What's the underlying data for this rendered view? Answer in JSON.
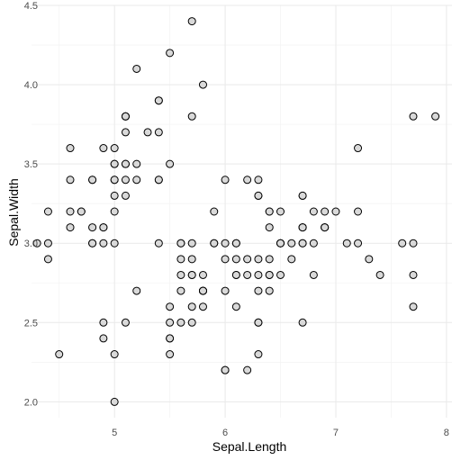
{
  "chart_data": {
    "type": "scatter",
    "xlabel": "Sepal.Length",
    "ylabel": "Sepal.Width",
    "xlim": [
      4.25,
      8.05
    ],
    "ylim": [
      1.9,
      4.5
    ],
    "x_ticks": [
      5,
      6,
      7,
      8
    ],
    "y_ticks": [
      2.0,
      2.5,
      3.0,
      3.5,
      4.0,
      4.5
    ],
    "x_tick_labels": [
      "5",
      "6",
      "7",
      "8"
    ],
    "y_tick_labels": [
      "2.0",
      "2.5",
      "3.0",
      "3.5",
      "4.0",
      "4.5"
    ],
    "grid": true,
    "legend": "none",
    "point_fill": "#d9d9d9",
    "point_stroke": "#000000",
    "points": [
      {
        "x": 5.1,
        "y": 3.5
      },
      {
        "x": 4.9,
        "y": 3.0
      },
      {
        "x": 4.7,
        "y": 3.2
      },
      {
        "x": 4.6,
        "y": 3.1
      },
      {
        "x": 5.0,
        "y": 3.6
      },
      {
        "x": 5.4,
        "y": 3.9
      },
      {
        "x": 4.6,
        "y": 3.4
      },
      {
        "x": 5.0,
        "y": 3.4
      },
      {
        "x": 4.4,
        "y": 2.9
      },
      {
        "x": 4.9,
        "y": 3.1
      },
      {
        "x": 5.4,
        "y": 3.7
      },
      {
        "x": 4.8,
        "y": 3.4
      },
      {
        "x": 4.8,
        "y": 3.0
      },
      {
        "x": 4.3,
        "y": 3.0
      },
      {
        "x": 5.8,
        "y": 4.0
      },
      {
        "x": 5.7,
        "y": 4.4
      },
      {
        "x": 5.4,
        "y": 3.9
      },
      {
        "x": 5.1,
        "y": 3.5
      },
      {
        "x": 5.7,
        "y": 3.8
      },
      {
        "x": 5.1,
        "y": 3.8
      },
      {
        "x": 5.4,
        "y": 3.4
      },
      {
        "x": 5.1,
        "y": 3.7
      },
      {
        "x": 4.6,
        "y": 3.6
      },
      {
        "x": 5.1,
        "y": 3.3
      },
      {
        "x": 4.8,
        "y": 3.4
      },
      {
        "x": 5.0,
        "y": 3.0
      },
      {
        "x": 5.0,
        "y": 3.4
      },
      {
        "x": 5.2,
        "y": 3.5
      },
      {
        "x": 5.2,
        "y": 3.4
      },
      {
        "x": 4.7,
        "y": 3.2
      },
      {
        "x": 4.8,
        "y": 3.1
      },
      {
        "x": 5.4,
        "y": 3.4
      },
      {
        "x": 5.2,
        "y": 4.1
      },
      {
        "x": 5.5,
        "y": 4.2
      },
      {
        "x": 4.9,
        "y": 3.1
      },
      {
        "x": 5.0,
        "y": 3.2
      },
      {
        "x": 5.5,
        "y": 3.5
      },
      {
        "x": 4.9,
        "y": 3.6
      },
      {
        "x": 4.4,
        "y": 3.0
      },
      {
        "x": 5.1,
        "y": 3.4
      },
      {
        "x": 5.0,
        "y": 3.5
      },
      {
        "x": 4.5,
        "y": 2.3
      },
      {
        "x": 4.4,
        "y": 3.2
      },
      {
        "x": 5.0,
        "y": 3.5
      },
      {
        "x": 5.1,
        "y": 3.8
      },
      {
        "x": 4.8,
        "y": 3.0
      },
      {
        "x": 5.1,
        "y": 3.8
      },
      {
        "x": 4.6,
        "y": 3.2
      },
      {
        "x": 5.3,
        "y": 3.7
      },
      {
        "x": 5.0,
        "y": 3.3
      },
      {
        "x": 7.0,
        "y": 3.2
      },
      {
        "x": 6.4,
        "y": 3.2
      },
      {
        "x": 6.9,
        "y": 3.1
      },
      {
        "x": 5.5,
        "y": 2.3
      },
      {
        "x": 6.5,
        "y": 2.8
      },
      {
        "x": 5.7,
        "y": 2.8
      },
      {
        "x": 6.3,
        "y": 3.3
      },
      {
        "x": 4.9,
        "y": 2.4
      },
      {
        "x": 6.6,
        "y": 2.9
      },
      {
        "x": 5.2,
        "y": 2.7
      },
      {
        "x": 5.0,
        "y": 2.0
      },
      {
        "x": 5.9,
        "y": 3.0
      },
      {
        "x": 6.0,
        "y": 2.2
      },
      {
        "x": 6.1,
        "y": 2.9
      },
      {
        "x": 5.6,
        "y": 2.9
      },
      {
        "x": 6.7,
        "y": 3.1
      },
      {
        "x": 5.6,
        "y": 3.0
      },
      {
        "x": 5.8,
        "y": 2.7
      },
      {
        "x": 6.2,
        "y": 2.2
      },
      {
        "x": 5.6,
        "y": 2.5
      },
      {
        "x": 5.9,
        "y": 3.2
      },
      {
        "x": 6.1,
        "y": 2.8
      },
      {
        "x": 6.3,
        "y": 2.5
      },
      {
        "x": 6.1,
        "y": 2.8
      },
      {
        "x": 6.4,
        "y": 2.9
      },
      {
        "x": 6.6,
        "y": 3.0
      },
      {
        "x": 6.8,
        "y": 2.8
      },
      {
        "x": 6.7,
        "y": 3.0
      },
      {
        "x": 6.0,
        "y": 2.9
      },
      {
        "x": 5.7,
        "y": 2.6
      },
      {
        "x": 5.5,
        "y": 2.4
      },
      {
        "x": 5.5,
        "y": 2.4
      },
      {
        "x": 5.8,
        "y": 2.7
      },
      {
        "x": 6.0,
        "y": 2.7
      },
      {
        "x": 5.4,
        "y": 3.0
      },
      {
        "x": 6.0,
        "y": 3.4
      },
      {
        "x": 6.7,
        "y": 3.1
      },
      {
        "x": 6.3,
        "y": 2.3
      },
      {
        "x": 5.6,
        "y": 3.0
      },
      {
        "x": 5.5,
        "y": 2.5
      },
      {
        "x": 5.5,
        "y": 2.6
      },
      {
        "x": 6.1,
        "y": 3.0
      },
      {
        "x": 5.8,
        "y": 2.6
      },
      {
        "x": 5.0,
        "y": 2.3
      },
      {
        "x": 5.6,
        "y": 2.7
      },
      {
        "x": 5.7,
        "y": 3.0
      },
      {
        "x": 5.7,
        "y": 2.9
      },
      {
        "x": 6.2,
        "y": 2.9
      },
      {
        "x": 5.1,
        "y": 2.5
      },
      {
        "x": 5.7,
        "y": 2.8
      },
      {
        "x": 6.3,
        "y": 3.3
      },
      {
        "x": 5.8,
        "y": 2.7
      },
      {
        "x": 7.1,
        "y": 3.0
      },
      {
        "x": 6.3,
        "y": 2.9
      },
      {
        "x": 6.5,
        "y": 3.0
      },
      {
        "x": 7.6,
        "y": 3.0
      },
      {
        "x": 4.9,
        "y": 2.5
      },
      {
        "x": 7.3,
        "y": 2.9
      },
      {
        "x": 6.7,
        "y": 2.5
      },
      {
        "x": 7.2,
        "y": 3.6
      },
      {
        "x": 6.5,
        "y": 3.2
      },
      {
        "x": 6.4,
        "y": 2.7
      },
      {
        "x": 6.8,
        "y": 3.0
      },
      {
        "x": 5.7,
        "y": 2.5
      },
      {
        "x": 5.8,
        "y": 2.8
      },
      {
        "x": 6.4,
        "y": 3.2
      },
      {
        "x": 6.5,
        "y": 3.0
      },
      {
        "x": 7.7,
        "y": 3.8
      },
      {
        "x": 7.7,
        "y": 2.6
      },
      {
        "x": 6.0,
        "y": 2.2
      },
      {
        "x": 6.9,
        "y": 3.2
      },
      {
        "x": 5.6,
        "y": 2.8
      },
      {
        "x": 7.7,
        "y": 2.8
      },
      {
        "x": 6.3,
        "y": 2.7
      },
      {
        "x": 6.7,
        "y": 3.3
      },
      {
        "x": 7.2,
        "y": 3.2
      },
      {
        "x": 6.2,
        "y": 2.8
      },
      {
        "x": 6.1,
        "y": 3.0
      },
      {
        "x": 6.4,
        "y": 2.8
      },
      {
        "x": 7.2,
        "y": 3.0
      },
      {
        "x": 7.4,
        "y": 2.8
      },
      {
        "x": 7.9,
        "y": 3.8
      },
      {
        "x": 6.4,
        "y": 2.8
      },
      {
        "x": 6.3,
        "y": 2.8
      },
      {
        "x": 6.1,
        "y": 2.6
      },
      {
        "x": 7.7,
        "y": 3.0
      },
      {
        "x": 6.3,
        "y": 3.4
      },
      {
        "x": 6.4,
        "y": 3.1
      },
      {
        "x": 6.0,
        "y": 3.0
      },
      {
        "x": 6.9,
        "y": 3.1
      },
      {
        "x": 6.7,
        "y": 3.1
      },
      {
        "x": 6.9,
        "y": 3.1
      },
      {
        "x": 5.8,
        "y": 2.7
      },
      {
        "x": 6.8,
        "y": 3.2
      },
      {
        "x": 6.7,
        "y": 3.3
      },
      {
        "x": 6.7,
        "y": 3.0
      },
      {
        "x": 6.3,
        "y": 2.5
      },
      {
        "x": 6.5,
        "y": 3.0
      },
      {
        "x": 6.2,
        "y": 3.4
      },
      {
        "x": 5.9,
        "y": 3.0
      }
    ]
  }
}
